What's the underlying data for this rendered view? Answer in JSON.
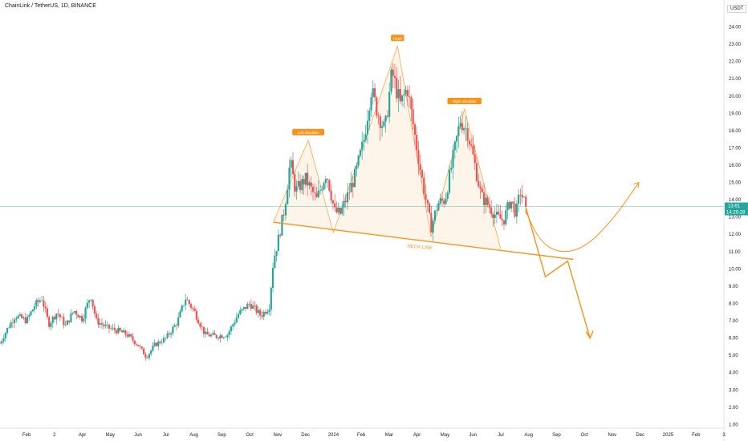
{
  "title": "ChainLink / TetherUS, 1D, BINANCE",
  "unit": "USDT",
  "chart_data": {
    "type": "candlestick",
    "symbol": "ChainLink / TetherUS",
    "interval": "1D",
    "exchange": "BINANCE",
    "y_axis": {
      "ticks": [
        1.0,
        2.0,
        3.0,
        4.0,
        5.0,
        6.0,
        7.0,
        8.0,
        9.0,
        10.0,
        11.0,
        12.0,
        13.0,
        14.0,
        15.0,
        16.0,
        17.0,
        18.0,
        19.0,
        20.0,
        21.0,
        22.0,
        23.0,
        24.0
      ],
      "tick_labels": [
        "1.00",
        "2.00",
        "3.00",
        "4.00",
        "5.00",
        "6.00",
        "7.00",
        "8.00",
        "9.00",
        "10.00",
        "11.00",
        "12.00",
        "13.00",
        "14.00",
        "15.00",
        "16.00",
        "17.00",
        "18.00",
        "19.00",
        "20.00",
        "21.00",
        "22.00",
        "23.00",
        "24.00"
      ],
      "range": [
        0.6,
        25.0
      ]
    },
    "x_axis": {
      "ticks": [
        {
          "label": "Feb",
          "t": 1
        },
        {
          "label": "2",
          "t": 2
        },
        {
          "label": "Apr",
          "t": 3
        },
        {
          "label": "May",
          "t": 4
        },
        {
          "label": "Jun",
          "t": 5
        },
        {
          "label": "Jul",
          "t": 6
        },
        {
          "label": "Aug",
          "t": 7
        },
        {
          "label": "Sep",
          "t": 8
        },
        {
          "label": "Oct",
          "t": 9
        },
        {
          "label": "Nov",
          "t": 10
        },
        {
          "label": "Dec",
          "t": 11
        },
        {
          "label": "2024",
          "t": 12
        },
        {
          "label": "Feb",
          "t": 13
        },
        {
          "label": "Mar",
          "t": 14
        },
        {
          "label": "Apr",
          "t": 15
        },
        {
          "label": "May",
          "t": 16
        },
        {
          "label": "Jun",
          "t": 17
        },
        {
          "label": "Jul",
          "t": 18
        },
        {
          "label": "Aug",
          "t": 19
        },
        {
          "label": "Sep",
          "t": 20
        },
        {
          "label": "Oct",
          "t": 21
        },
        {
          "label": "Nov",
          "t": 22
        },
        {
          "label": "Dec",
          "t": 23
        },
        {
          "label": "2025",
          "t": 24
        },
        {
          "label": "Feb",
          "t": 25
        },
        {
          "label": "3",
          "t": 26
        }
      ],
      "range": [
        0.05,
        26.0
      ]
    },
    "price_path": [
      [
        0.05,
        5.7
      ],
      [
        0.3,
        6.5
      ],
      [
        0.6,
        7.3
      ],
      [
        1.0,
        7.0
      ],
      [
        1.3,
        7.9
      ],
      [
        1.55,
        8.3
      ],
      [
        1.8,
        6.8
      ],
      [
        2.1,
        7.5
      ],
      [
        2.4,
        6.7
      ],
      [
        2.7,
        7.6
      ],
      [
        3.0,
        7.1
      ],
      [
        3.3,
        8.5
      ],
      [
        3.5,
        7.0
      ],
      [
        3.9,
        6.6
      ],
      [
        4.3,
        6.4
      ],
      [
        4.6,
        6.2
      ],
      [
        5.0,
        5.6
      ],
      [
        5.3,
        4.9
      ],
      [
        5.6,
        5.6
      ],
      [
        6.0,
        6.0
      ],
      [
        6.4,
        6.9
      ],
      [
        6.7,
        8.3
      ],
      [
        7.0,
        7.6
      ],
      [
        7.4,
        6.2
      ],
      [
        7.8,
        6.1
      ],
      [
        8.2,
        6.2
      ],
      [
        8.6,
        7.4
      ],
      [
        9.0,
        8.0
      ],
      [
        9.4,
        7.3
      ],
      [
        9.7,
        7.8
      ],
      [
        9.85,
        10.5
      ],
      [
        10.0,
        11.5
      ],
      [
        10.25,
        13.5
      ],
      [
        10.45,
        16.2
      ],
      [
        10.65,
        14.5
      ],
      [
        11.0,
        15.2
      ],
      [
        11.4,
        14.0
      ],
      [
        11.75,
        15.6
      ],
      [
        12.05,
        13.3
      ],
      [
        12.25,
        13.2
      ],
      [
        12.5,
        14.2
      ],
      [
        12.8,
        15.5
      ],
      [
        13.1,
        17.5
      ],
      [
        13.35,
        20.4
      ],
      [
        13.6,
        19.0
      ],
      [
        13.85,
        18.0
      ],
      [
        14.1,
        21.4
      ],
      [
        14.4,
        19.5
      ],
      [
        14.65,
        20.5
      ],
      [
        14.9,
        17.9
      ],
      [
        15.2,
        15.0
      ],
      [
        15.5,
        12.4
      ],
      [
        15.75,
        13.8
      ],
      [
        16.0,
        14.0
      ],
      [
        16.3,
        16.5
      ],
      [
        16.55,
        18.6
      ],
      [
        16.8,
        18.0
      ],
      [
        17.05,
        16.2
      ],
      [
        17.3,
        14.2
      ],
      [
        17.6,
        13.6
      ],
      [
        17.85,
        13.0
      ],
      [
        18.1,
        12.8
      ],
      [
        18.35,
        14.0
      ],
      [
        18.55,
        13.2
      ],
      [
        18.7,
        14.5
      ],
      [
        18.9,
        13.61
      ]
    ],
    "last_price": "13.61",
    "countdown": "14:29:28",
    "annotations": [
      {
        "label": "Left Shoulder",
        "t": 11.1,
        "price": 17.45
      },
      {
        "label": "Head",
        "t": 14.3,
        "price": 22.9
      },
      {
        "label": "Right Shoulder",
        "t": 16.7,
        "price": 19.25
      }
    ],
    "neckline": {
      "label": "NECK LINE",
      "from": [
        9.85,
        12.7
      ],
      "to": [
        20.6,
        10.55
      ]
    },
    "pattern_outline": [
      [
        9.85,
        12.7
      ],
      [
        11.1,
        17.45
      ],
      [
        12.0,
        12.1
      ],
      [
        14.3,
        22.9
      ],
      [
        15.5,
        11.85
      ],
      [
        16.7,
        19.25
      ],
      [
        18.0,
        11.15
      ]
    ],
    "projection_down": [
      [
        18.9,
        13.55
      ],
      [
        19.6,
        9.55
      ],
      [
        20.4,
        10.45
      ],
      [
        21.2,
        6.0
      ]
    ],
    "projection_up": [
      [
        18.9,
        13.3
      ],
      [
        19.4,
        11.6
      ],
      [
        20.1,
        10.9
      ],
      [
        21.0,
        11.2
      ],
      [
        22.0,
        12.8
      ],
      [
        22.95,
        15.0
      ]
    ]
  }
}
